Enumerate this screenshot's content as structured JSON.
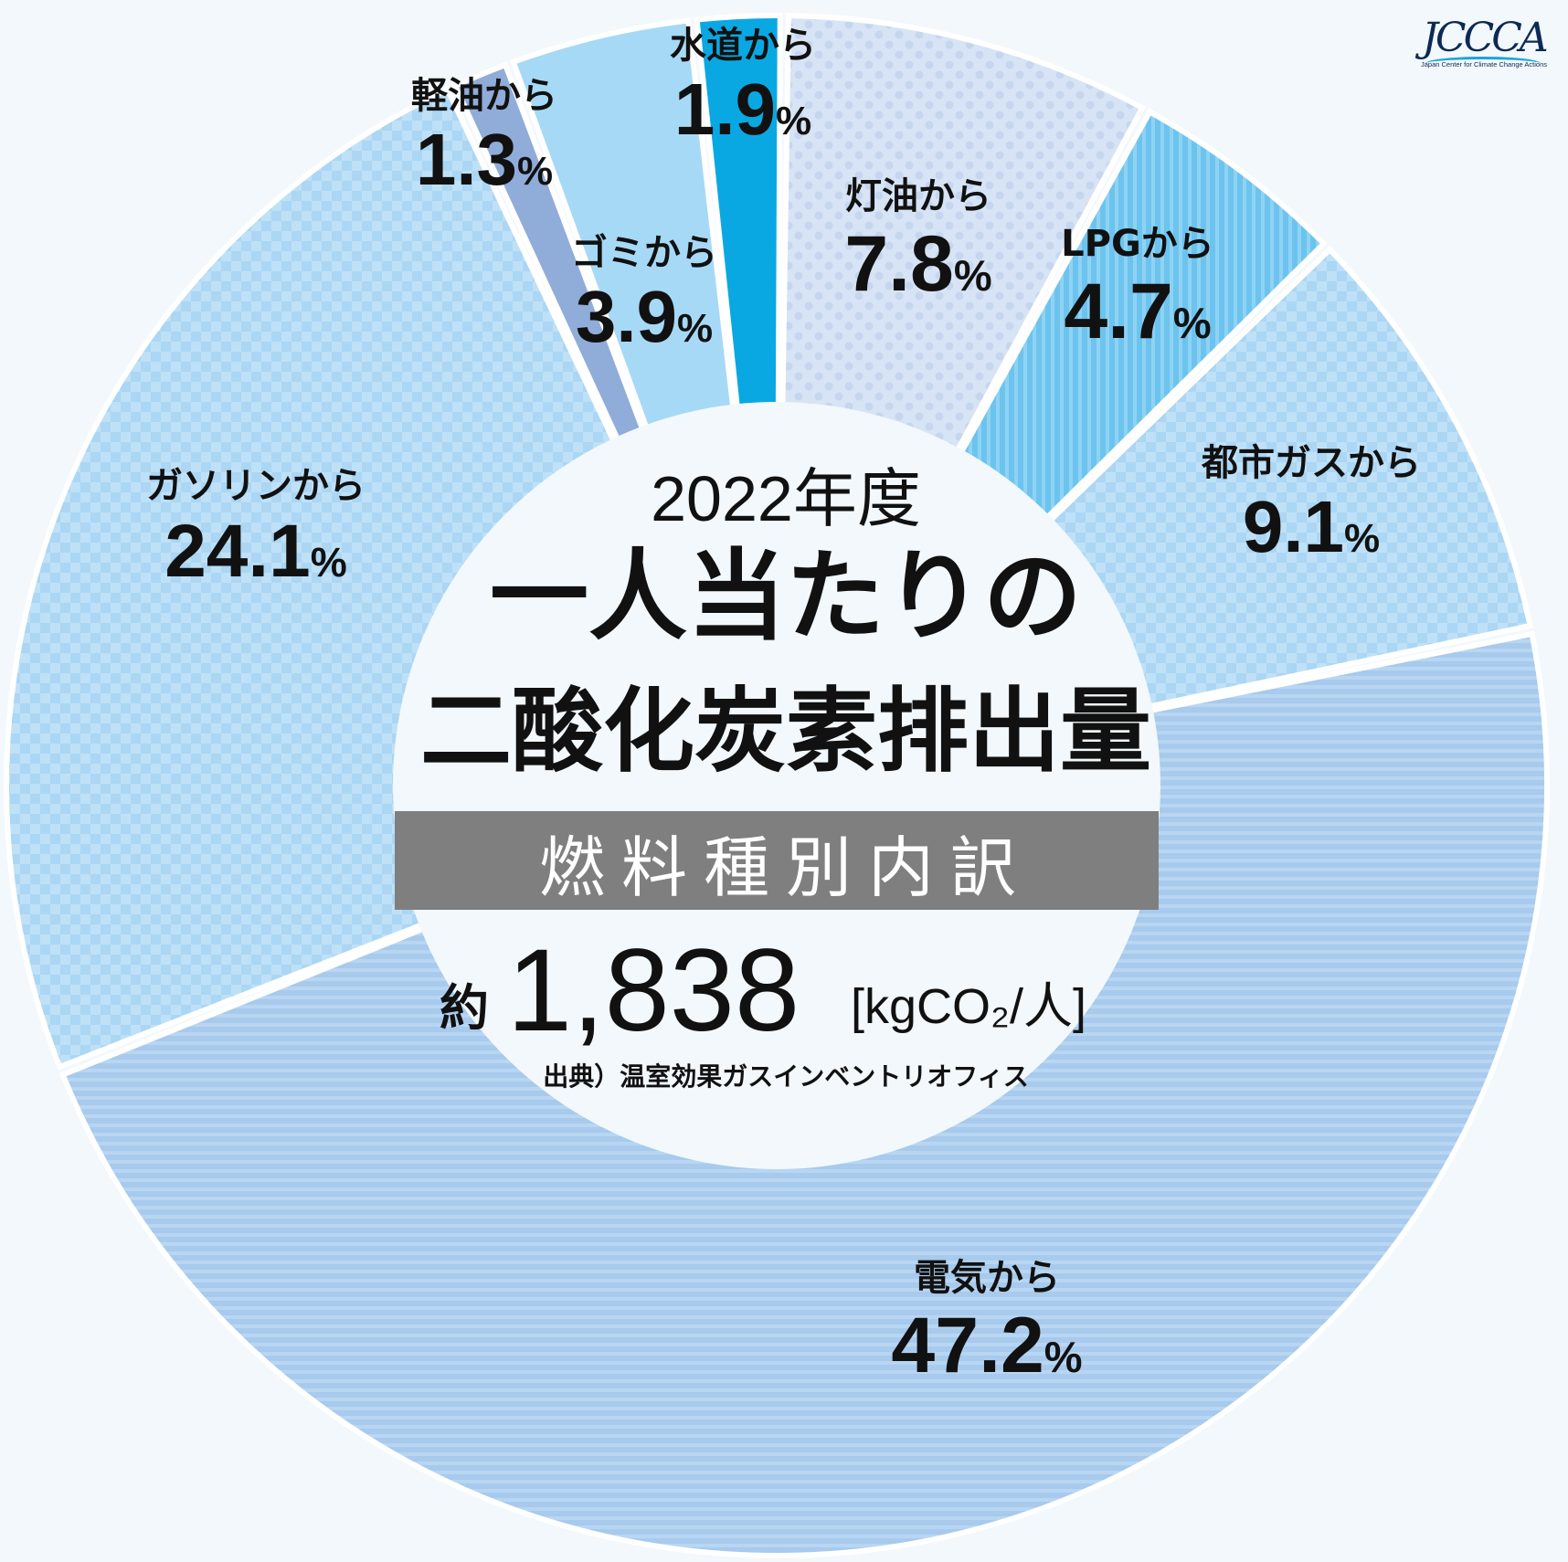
{
  "logo": {
    "mark": "JCCCA",
    "subtitle": "Japan Center for Climate Change Actions"
  },
  "center": {
    "year": "2022年度",
    "title_line1": "一人当たりの",
    "title_line2": "二酸化炭素排出量",
    "band": "燃料種別内訳",
    "approx": "約",
    "total": "1,838",
    "unit": "[kgCO₂/人]",
    "source": "出典）温室効果ガスインベントリオフィス"
  },
  "chart_data": {
    "type": "pie",
    "title": "2022年度 一人当たりの二酸化炭素排出量 燃料種別内訳",
    "unit": "%",
    "slices": [
      {
        "label": "灯油から",
        "value": 7.8,
        "value_text": "7.8",
        "color": "#d7e4f5",
        "pattern": "dots"
      },
      {
        "label": "LPGから",
        "value": 4.7,
        "value_text": "4.7",
        "color": "#6cc4ee",
        "pattern": "stripes-v"
      },
      {
        "label": "都市ガスから",
        "value": 9.1,
        "value_text": "9.1",
        "color": "#bfe1f7",
        "pattern": "check"
      },
      {
        "label": "電気から",
        "value": 47.2,
        "value_text": "47.2",
        "color": "#a7caed",
        "pattern": "stripes-h"
      },
      {
        "label": "ガソリンから",
        "value": 24.1,
        "value_text": "24.1",
        "color": "#bfe1f7",
        "pattern": "check"
      },
      {
        "label": "軽油から",
        "value": 1.3,
        "value_text": "1.3",
        "color": "#90acd9",
        "pattern": "none"
      },
      {
        "label": "ゴミから",
        "value": 3.9,
        "value_text": "3.9",
        "color": "#a6d9f6",
        "pattern": "none"
      },
      {
        "label": "水道から",
        "value": 1.9,
        "value_text": "1.9",
        "color": "#0aa8e2",
        "pattern": "none"
      }
    ]
  }
}
